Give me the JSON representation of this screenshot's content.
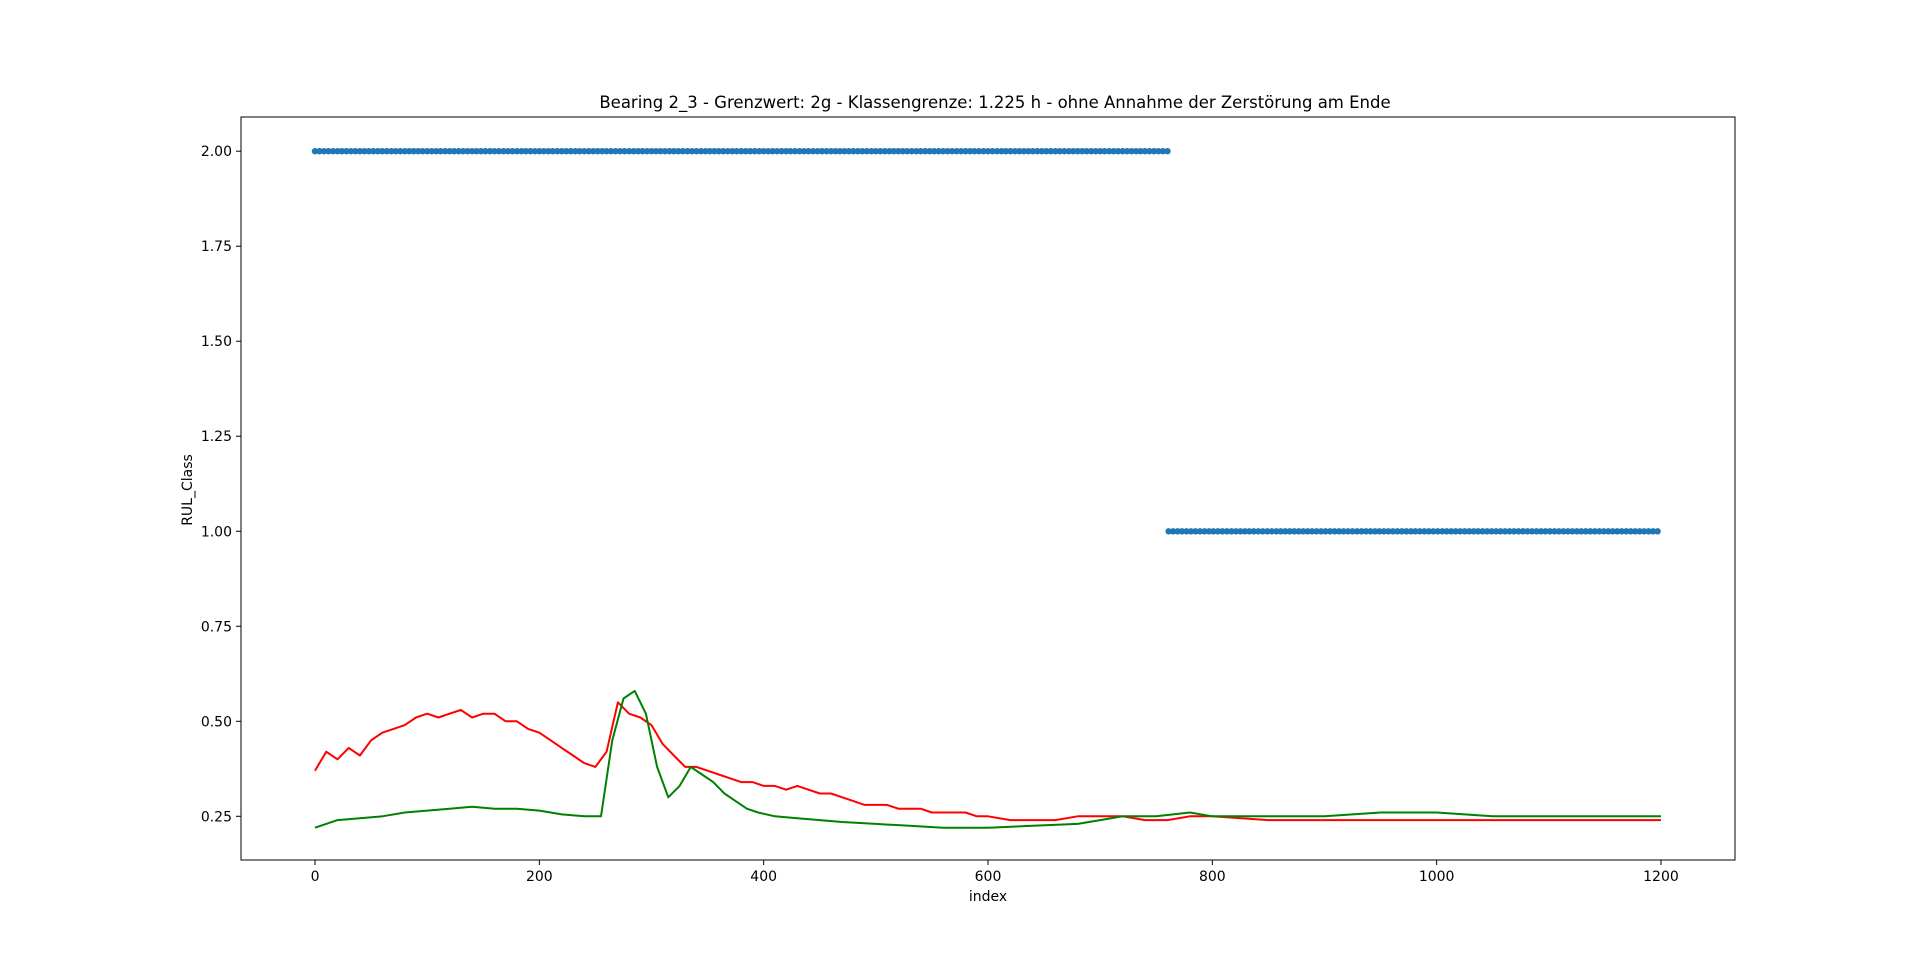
{
  "chart_data": {
    "type": "scatter",
    "title": "Bearing 2_3 - Grenzwert: 2g - Klassengrenze: 1.225 h - ohne Annahme der Zerstörung am Ende",
    "xlabel": "index",
    "ylabel": "RUL_Class",
    "xlim": [
      -66,
      1266
    ],
    "ylim": [
      0.135,
      2.09
    ],
    "xticks": [
      0,
      200,
      400,
      600,
      800,
      1000,
      1200
    ],
    "xtick_labels": [
      "0",
      "200",
      "400",
      "600",
      "800",
      "1000",
      "1200"
    ],
    "yticks": [
      0.25,
      0.5,
      0.75,
      1.0,
      1.25,
      1.5,
      1.75,
      2.0
    ],
    "ytick_labels": [
      "0.25",
      "0.50",
      "0.75",
      "1.00",
      "1.25",
      "1.50",
      "1.75",
      "2.00"
    ],
    "grid": false,
    "series": [
      {
        "kind": "scatter",
        "color": "#1f77b4",
        "segments": [
          {
            "x_start": 0,
            "x_end": 761,
            "y": 2.0
          },
          {
            "x_start": 761,
            "x_end": 1200,
            "y": 1.0
          }
        ]
      },
      {
        "kind": "line",
        "color": "#ff0000",
        "points": [
          [
            0,
            0.37
          ],
          [
            10,
            0.42
          ],
          [
            20,
            0.4
          ],
          [
            30,
            0.43
          ],
          [
            40,
            0.41
          ],
          [
            50,
            0.45
          ],
          [
            60,
            0.47
          ],
          [
            70,
            0.48
          ],
          [
            80,
            0.49
          ],
          [
            90,
            0.51
          ],
          [
            100,
            0.52
          ],
          [
            110,
            0.51
          ],
          [
            120,
            0.52
          ],
          [
            130,
            0.53
          ],
          [
            140,
            0.51
          ],
          [
            150,
            0.52
          ],
          [
            160,
            0.52
          ],
          [
            170,
            0.5
          ],
          [
            180,
            0.5
          ],
          [
            190,
            0.48
          ],
          [
            200,
            0.47
          ],
          [
            210,
            0.45
          ],
          [
            220,
            0.43
          ],
          [
            230,
            0.41
          ],
          [
            240,
            0.39
          ],
          [
            250,
            0.38
          ],
          [
            260,
            0.42
          ],
          [
            270,
            0.55
          ],
          [
            280,
            0.52
          ],
          [
            290,
            0.51
          ],
          [
            300,
            0.49
          ],
          [
            310,
            0.44
          ],
          [
            320,
            0.41
          ],
          [
            330,
            0.38
          ],
          [
            340,
            0.38
          ],
          [
            350,
            0.37
          ],
          [
            360,
            0.36
          ],
          [
            370,
            0.35
          ],
          [
            380,
            0.34
          ],
          [
            390,
            0.34
          ],
          [
            400,
            0.33
          ],
          [
            410,
            0.33
          ],
          [
            420,
            0.32
          ],
          [
            430,
            0.33
          ],
          [
            440,
            0.32
          ],
          [
            450,
            0.31
          ],
          [
            460,
            0.31
          ],
          [
            470,
            0.3
          ],
          [
            480,
            0.29
          ],
          [
            490,
            0.28
          ],
          [
            500,
            0.28
          ],
          [
            510,
            0.28
          ],
          [
            520,
            0.27
          ],
          [
            530,
            0.27
          ],
          [
            540,
            0.27
          ],
          [
            550,
            0.26
          ],
          [
            560,
            0.26
          ],
          [
            570,
            0.26
          ],
          [
            580,
            0.26
          ],
          [
            590,
            0.25
          ],
          [
            600,
            0.25
          ],
          [
            620,
            0.24
          ],
          [
            640,
            0.24
          ],
          [
            660,
            0.24
          ],
          [
            680,
            0.25
          ],
          [
            700,
            0.25
          ],
          [
            720,
            0.25
          ],
          [
            740,
            0.24
          ],
          [
            760,
            0.24
          ],
          [
            780,
            0.25
          ],
          [
            800,
            0.25
          ],
          [
            850,
            0.24
          ],
          [
            900,
            0.24
          ],
          [
            950,
            0.24
          ],
          [
            1000,
            0.24
          ],
          [
            1050,
            0.24
          ],
          [
            1100,
            0.24
          ],
          [
            1150,
            0.24
          ],
          [
            1200,
            0.24
          ]
        ]
      },
      {
        "kind": "line",
        "color": "#008000",
        "points": [
          [
            0,
            0.22
          ],
          [
            20,
            0.24
          ],
          [
            40,
            0.245
          ],
          [
            60,
            0.25
          ],
          [
            80,
            0.26
          ],
          [
            100,
            0.265
          ],
          [
            120,
            0.27
          ],
          [
            140,
            0.275
          ],
          [
            160,
            0.27
          ],
          [
            180,
            0.27
          ],
          [
            200,
            0.265
          ],
          [
            220,
            0.255
          ],
          [
            240,
            0.25
          ],
          [
            255,
            0.25
          ],
          [
            265,
            0.45
          ],
          [
            275,
            0.56
          ],
          [
            285,
            0.58
          ],
          [
            295,
            0.52
          ],
          [
            305,
            0.38
          ],
          [
            315,
            0.3
          ],
          [
            325,
            0.33
          ],
          [
            335,
            0.38
          ],
          [
            345,
            0.36
          ],
          [
            355,
            0.34
          ],
          [
            365,
            0.31
          ],
          [
            375,
            0.29
          ],
          [
            385,
            0.27
          ],
          [
            395,
            0.26
          ],
          [
            410,
            0.25
          ],
          [
            430,
            0.245
          ],
          [
            450,
            0.24
          ],
          [
            470,
            0.235
          ],
          [
            500,
            0.23
          ],
          [
            530,
            0.225
          ],
          [
            560,
            0.22
          ],
          [
            600,
            0.22
          ],
          [
            640,
            0.225
          ],
          [
            680,
            0.23
          ],
          [
            700,
            0.24
          ],
          [
            720,
            0.25
          ],
          [
            750,
            0.25
          ],
          [
            780,
            0.26
          ],
          [
            800,
            0.25
          ],
          [
            850,
            0.25
          ],
          [
            900,
            0.25
          ],
          [
            950,
            0.26
          ],
          [
            1000,
            0.26
          ],
          [
            1050,
            0.25
          ],
          [
            1100,
            0.25
          ],
          [
            1150,
            0.25
          ],
          [
            1200,
            0.25
          ]
        ]
      }
    ]
  }
}
